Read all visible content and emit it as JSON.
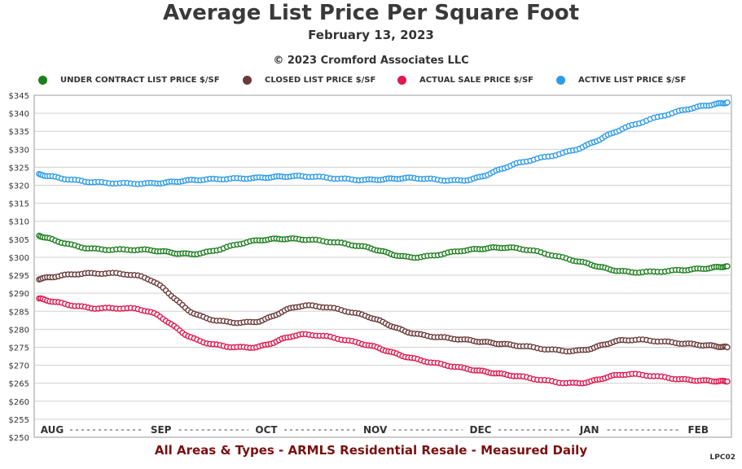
{
  "chart_data": {
    "type": "line",
    "title": "Average List Price Per Square Foot",
    "subtitle": "February 13, 2023",
    "copyright": "© 2023 Cromford Associates LLC",
    "footer": "All Areas & Types - ARMLS Residential Resale - Measured Daily",
    "code": "LPC02",
    "ylim": [
      250,
      345
    ],
    "y_ticks": [
      "$250",
      "$255",
      "$260",
      "$265",
      "$270",
      "$275",
      "$280",
      "$285",
      "$290",
      "$295",
      "$300",
      "$305",
      "$310",
      "$315",
      "$320",
      "$325",
      "$330",
      "$335",
      "$340",
      "$345"
    ],
    "x_labels": [
      "AUG",
      "SEP",
      "OCT",
      "NOV",
      "DEC",
      "JAN",
      "FEB"
    ],
    "grid": true,
    "legend_position": "top",
    "x": [
      "2022-08-01",
      "2022-08-15",
      "2022-09-01",
      "2022-09-15",
      "2022-10-01",
      "2022-10-15",
      "2022-11-01",
      "2022-11-15",
      "2022-12-01",
      "2022-12-15",
      "2023-01-01",
      "2023-01-15",
      "2023-02-01",
      "2023-02-13"
    ],
    "series": [
      {
        "name": "UNDER CONTRACT LIST PRICE $/SF",
        "color": "#1e7e1e",
        "values": [
          306,
          302.5,
          302,
          301,
          304.5,
          305,
          303,
          300,
          302,
          302.5,
          299,
          296,
          296.5,
          297.5
        ]
      },
      {
        "name": "CLOSED LIST PRICE $/SF",
        "color": "#6b3a3a",
        "values": [
          294,
          295.5,
          294,
          284,
          282,
          286.5,
          284,
          279,
          277,
          275.5,
          274,
          277,
          276,
          275
        ]
      },
      {
        "name": "ACTUAL SALE PRICE $/SF",
        "color": "#e0194e",
        "values": [
          288.5,
          286,
          285,
          277,
          275,
          278.5,
          276,
          272,
          269,
          267,
          265,
          267.5,
          266,
          265.5
        ]
      },
      {
        "name": "ACTIVE LIST PRICE $/SF",
        "color": "#2e9be8",
        "values": [
          323,
          321,
          320.5,
          321.5,
          322,
          322.5,
          321.5,
          322,
          321.5,
          326,
          330,
          336,
          341,
          343
        ]
      }
    ]
  }
}
